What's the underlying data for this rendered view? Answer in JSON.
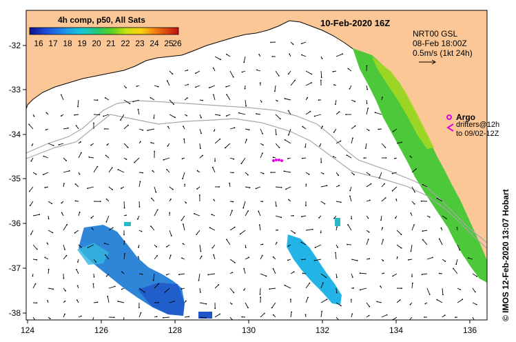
{
  "title": "10-Feb-2020 16Z",
  "colorbar": {
    "title": "4h comp, p50, All Sats",
    "ticks": [
      "16",
      "17",
      "18",
      "19",
      "20",
      "21",
      "22",
      "23",
      "24",
      "25",
      "26"
    ],
    "min": 16,
    "max": 26
  },
  "current_legend": {
    "line1": "NRT00 GSL",
    "line2": "08-Feb 18:00Z",
    "line3": "0.5m/s (1kt 24h)"
  },
  "argo_legend": {
    "label": "Argo",
    "drifters_line1": "drifters@12h",
    "drifters_line2": "to 09/02-12Z"
  },
  "credit": "© IMOS 12-Feb-2020 13:07 Hobart",
  "axes": {
    "lon_ticks": [
      "124",
      "126",
      "128",
      "130",
      "132",
      "134",
      "136"
    ],
    "lat_ticks": [
      "-32",
      "-33",
      "-34",
      "-35",
      "-36",
      "-37",
      "-38"
    ],
    "lon_range": [
      124,
      136.5
    ],
    "lat_range": [
      -31.5,
      -38.1
    ]
  },
  "colors": {
    "land": "#fbc796",
    "ocean": "#ffffff",
    "argo": "#e000e0",
    "bathymetry": "#a8a8a8"
  }
}
